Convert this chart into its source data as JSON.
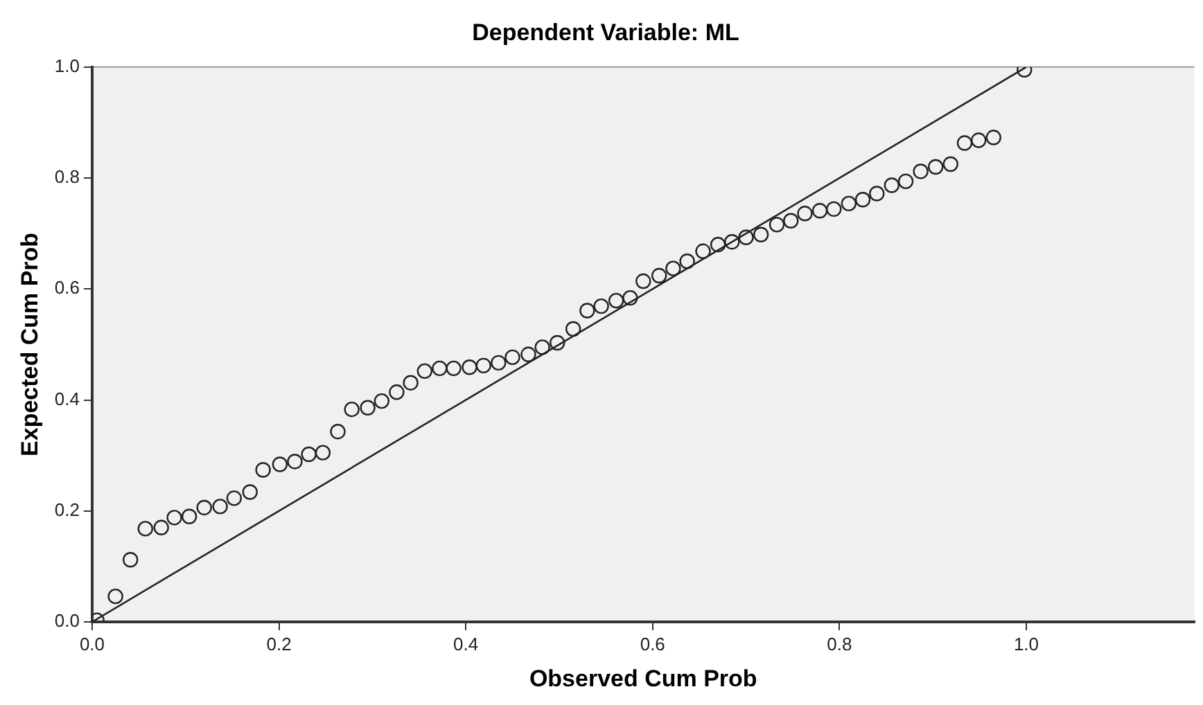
{
  "chart_data": {
    "type": "scatter",
    "title": "Dependent Variable: ML",
    "xlabel": "Observed Cum Prob",
    "ylabel": "Expected Cum Prob",
    "xlim": [
      0,
      1.18
    ],
    "ylim": [
      0,
      1
    ],
    "xticks": [
      {
        "value": 0,
        "label": "0.0"
      },
      {
        "value": 0.2,
        "label": "0.2"
      },
      {
        "value": 0.4,
        "label": "0.4"
      },
      {
        "value": 0.6,
        "label": "0.6"
      },
      {
        "value": 0.8,
        "label": "0.8"
      },
      {
        "value": 1,
        "label": "1.0"
      }
    ],
    "yticks": [
      {
        "value": 0,
        "label": "0.0"
      },
      {
        "value": 0.2,
        "label": "0.2"
      },
      {
        "value": 0.4,
        "label": "0.4"
      },
      {
        "value": 0.6,
        "label": "0.6"
      },
      {
        "value": 0.8,
        "label": "0.8"
      },
      {
        "value": 1,
        "label": "1.0"
      }
    ],
    "grid": false,
    "legend": false,
    "marker": "circle",
    "series": [
      {
        "color": "#222222",
        "x": [
          0.005,
          0.025,
          0.041,
          0.057,
          0.074,
          0.088,
          0.104,
          0.12,
          0.137,
          0.152,
          0.169,
          0.183,
          0.201,
          0.217,
          0.232,
          0.247,
          0.263,
          0.278,
          0.295,
          0.31,
          0.326,
          0.341,
          0.356,
          0.372,
          0.387,
          0.404,
          0.419,
          0.435,
          0.45,
          0.467,
          0.482,
          0.498,
          0.515,
          0.53,
          0.545,
          0.561,
          0.576,
          0.59,
          0.607,
          0.622,
          0.637,
          0.654,
          0.67,
          0.685,
          0.7,
          0.716,
          0.733,
          0.748,
          0.763,
          0.779,
          0.794,
          0.81,
          0.825,
          0.84,
          0.856,
          0.871,
          0.887,
          0.903,
          0.919,
          0.934,
          0.949,
          0.965,
          0.998
        ],
        "values": [
          0.003,
          0.046,
          0.112,
          0.168,
          0.17,
          0.188,
          0.19,
          0.206,
          0.208,
          0.223,
          0.234,
          0.274,
          0.284,
          0.289,
          0.302,
          0.305,
          0.343,
          0.383,
          0.386,
          0.398,
          0.414,
          0.431,
          0.452,
          0.457,
          0.457,
          0.459,
          0.462,
          0.467,
          0.477,
          0.482,
          0.495,
          0.503,
          0.528,
          0.561,
          0.569,
          0.579,
          0.584,
          0.614,
          0.624,
          0.637,
          0.65,
          0.668,
          0.68,
          0.685,
          0.693,
          0.698,
          0.716,
          0.723,
          0.736,
          0.741,
          0.744,
          0.754,
          0.761,
          0.772,
          0.787,
          0.794,
          0.812,
          0.82,
          0.825,
          0.863,
          0.868,
          0.873,
          0.995
        ]
      },
      {
        "type": "line",
        "color": "#222222",
        "marker": "none",
        "line_style": "solid",
        "x": [
          0,
          1
        ],
        "values": [
          0,
          1
        ]
      }
    ]
  }
}
